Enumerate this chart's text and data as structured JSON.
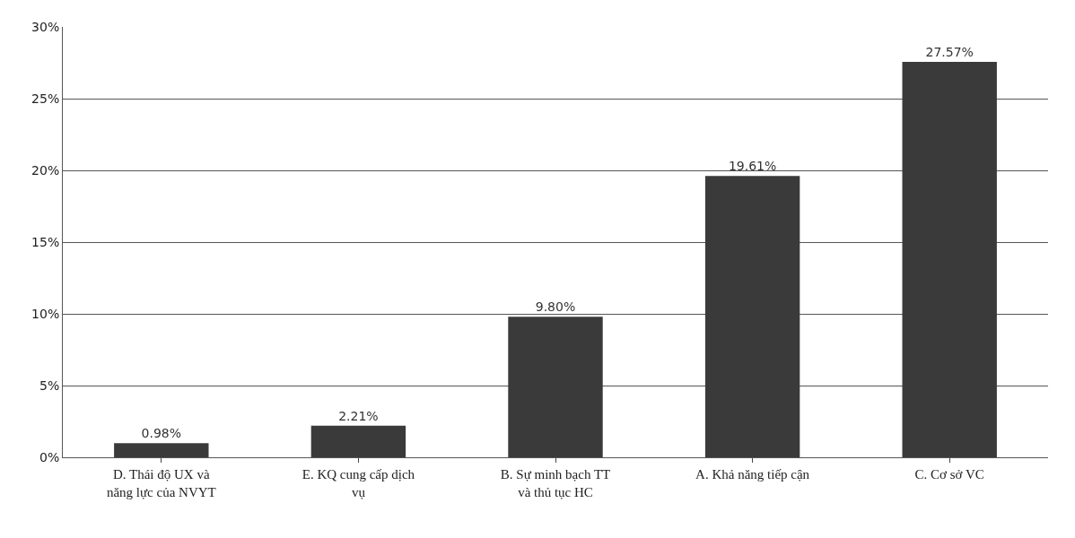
{
  "chart_data": {
    "type": "bar",
    "categories": [
      "D. Thái độ UX và năng lực của NVYT",
      "E. KQ cung cấp dịch vụ",
      "B. Sự minh bạch TT và thủ tục HC",
      "A. Khả năng tiếp cận",
      "C. Cơ sở VC"
    ],
    "values": [
      0.98,
      2.21,
      9.8,
      19.61,
      27.57
    ],
    "value_labels": [
      "0.98%",
      "2.21%",
      "9.80%",
      "19.61%",
      "27.57%"
    ],
    "color": "#3a3a3a",
    "ylim": [
      0,
      30
    ],
    "yticks": [
      {
        "value": 0,
        "label": "0%"
      },
      {
        "value": 5,
        "label": "5%"
      },
      {
        "value": 10,
        "label": "10%"
      },
      {
        "value": 15,
        "label": "15%"
      },
      {
        "value": 20,
        "label": "20%"
      },
      {
        "value": 25,
        "label": "25%"
      },
      {
        "value": 30,
        "label": "30%"
      }
    ],
    "grid": "y"
  }
}
